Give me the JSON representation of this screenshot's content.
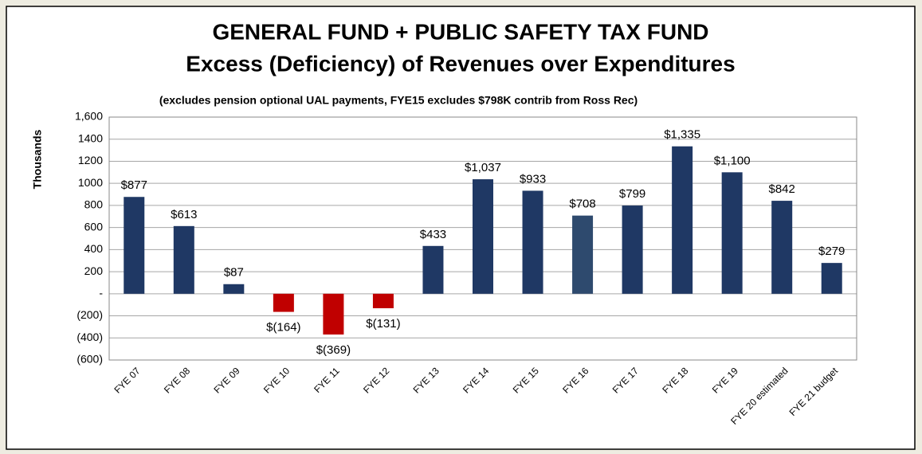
{
  "chart_data": {
    "type": "bar",
    "title": "GENERAL FUND + PUBLIC SAFETY TAX FUND",
    "subtitle": "Excess (Deficiency) of Revenues over Expenditures",
    "annotation": "(excludes pension optional UAL payments, FYE15 excludes $798K contrib from Ross Rec)",
    "y_label": "Thousands",
    "categories": [
      "FYE 07",
      "FYE 08",
      "FYE 09",
      "FYE 10",
      "FYE 11",
      "FYE 12",
      "FYE 13",
      "FYE 14",
      "FYE 15",
      "FYE 16",
      "FYE 17",
      "FYE 18",
      "FYE 19",
      "FYE 20 estimated",
      "FYE 21 budget"
    ],
    "values": [
      877,
      613,
      87,
      -164,
      -369,
      -131,
      433,
      1037,
      933,
      708,
      799,
      1335,
      1100,
      842,
      279
    ],
    "value_labels": [
      "$877",
      "$613",
      "$87",
      "$(164)",
      "$(369)",
      "$(131)",
      "$433",
      "$1,037",
      "$933",
      "$708",
      "$799",
      "$1,335",
      "$1,100",
      "$842",
      "$279"
    ],
    "colors": [
      "#1f3864",
      "#1f3864",
      "#1f3864",
      "#c00000",
      "#c00000",
      "#c00000",
      "#1f3864",
      "#1f3864",
      "#1f3864",
      "#2e4a6e",
      "#1f3864",
      "#1f3864",
      "#1f3864",
      "#1f3864",
      "#1f3864"
    ],
    "ylim": [
      -600,
      1600
    ],
    "yticks": [
      {
        "value": -600,
        "label": "(600)"
      },
      {
        "value": -400,
        "label": "(400)"
      },
      {
        "value": -200,
        "label": "(200)"
      },
      {
        "value": 0,
        "label": "-"
      },
      200,
      400,
      600,
      800,
      1000,
      1200,
      1400,
      {
        "value": 1600,
        "label": "1,600"
      }
    ],
    "grid": true
  }
}
